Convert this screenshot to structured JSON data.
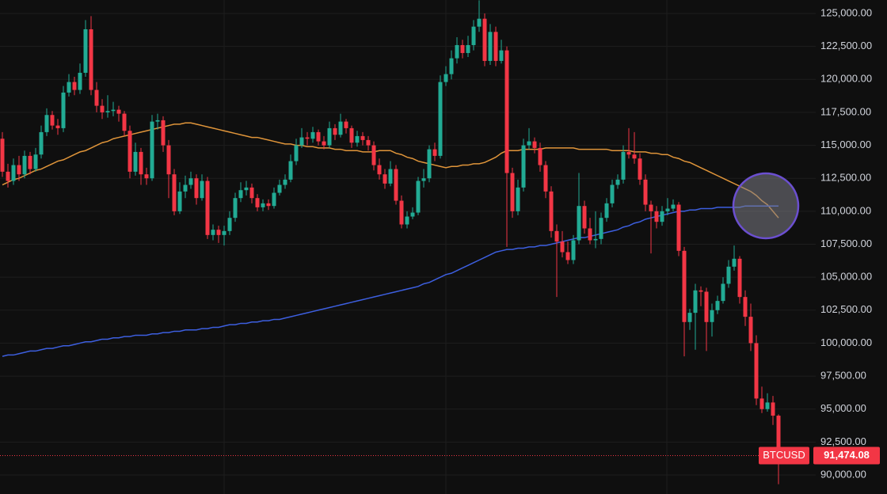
{
  "chart_data": {
    "type": "candlestick",
    "ylim": [
      88560,
      126020
    ],
    "yticks": [
      {
        "value": 90000,
        "label": "90,000.00"
      },
      {
        "value": 92500,
        "label": "92,500.00"
      },
      {
        "value": 95000,
        "label": "95,000.00"
      },
      {
        "value": 97500,
        "label": "97,500.00"
      },
      {
        "value": 100000,
        "label": "100,000.00"
      },
      {
        "value": 102500,
        "label": "102,500.00"
      },
      {
        "value": 105000,
        "label": "105,000.00"
      },
      {
        "value": 107500,
        "label": "107,500.00"
      },
      {
        "value": 110000,
        "label": "110,000.00"
      },
      {
        "value": 112500,
        "label": "112,500.00"
      },
      {
        "value": 115000,
        "label": "115,000.00"
      },
      {
        "value": 117500,
        "label": "117,500.00"
      },
      {
        "value": 120000,
        "label": "120,000.00"
      },
      {
        "value": 122500,
        "label": "122,500.00"
      },
      {
        "value": 125000,
        "label": "125,000.00"
      }
    ],
    "grid": true,
    "up_color": "#22ab94",
    "down_color": "#f23645",
    "symbol": "BTCUSD",
    "last_price": {
      "value": 91474.08,
      "label": "91,474.08"
    },
    "ohlc": [
      [
        115500,
        116000,
        112600,
        113000
      ],
      [
        113000,
        113600,
        111800,
        112300
      ],
      [
        112300,
        114000,
        112000,
        113500
      ],
      [
        113500,
        114200,
        112300,
        112800
      ],
      [
        112800,
        114600,
        112500,
        114200
      ],
      [
        114200,
        114500,
        112800,
        113200
      ],
      [
        113200,
        114800,
        113000,
        114300
      ],
      [
        114300,
        116500,
        114000,
        116000
      ],
      [
        116000,
        117800,
        115700,
        117300
      ],
      [
        117300,
        117600,
        116200,
        116500
      ],
      [
        116500,
        117000,
        115800,
        116300
      ],
      [
        116300,
        119500,
        116000,
        119000
      ],
      [
        119000,
        120400,
        118700,
        119800
      ],
      [
        119800,
        120200,
        118800,
        119200
      ],
      [
        119200,
        121200,
        118900,
        120500
      ],
      [
        120500,
        124500,
        120200,
        123800
      ],
      [
        123800,
        124800,
        118800,
        119200
      ],
      [
        119200,
        119800,
        117500,
        118000
      ],
      [
        118000,
        118500,
        117000,
        117500
      ],
      [
        117500,
        118800,
        117100,
        117600
      ],
      [
        117600,
        118300,
        117200,
        117700
      ],
      [
        117700,
        118000,
        116800,
        117400
      ],
      [
        117400,
        117600,
        115700,
        116100
      ],
      [
        116100,
        116500,
        112500,
        113000
      ],
      [
        113000,
        115200,
        112700,
        114500
      ],
      [
        114500,
        114800,
        112000,
        112800
      ],
      [
        112800,
        113300,
        112000,
        112500
      ],
      [
        112500,
        117300,
        112300,
        116800
      ],
      [
        116800,
        117400,
        116200,
        116900
      ],
      [
        116900,
        117200,
        114500,
        115000
      ],
      [
        115000,
        115400,
        111000,
        112800
      ],
      [
        112800,
        113200,
        109700,
        110000
      ],
      [
        110000,
        112200,
        109800,
        111500
      ],
      [
        111500,
        112700,
        111000,
        112000
      ],
      [
        112000,
        113000,
        111700,
        112500
      ],
      [
        112500,
        112800,
        110500,
        111000
      ],
      [
        111000,
        112800,
        110800,
        112300
      ],
      [
        112300,
        112600,
        107900,
        108200
      ],
      [
        108200,
        109000,
        107800,
        108600
      ],
      [
        108600,
        108900,
        107600,
        108200
      ],
      [
        108200,
        108900,
        107400,
        108500
      ],
      [
        108500,
        110000,
        108200,
        109500
      ],
      [
        109500,
        111400,
        109200,
        111000
      ],
      [
        111000,
        112200,
        110700,
        111600
      ],
      [
        111600,
        112300,
        111200,
        111800
      ],
      [
        111800,
        112100,
        110600,
        111000
      ],
      [
        111000,
        111300,
        110000,
        110300
      ],
      [
        110300,
        110900,
        110000,
        110600
      ],
      [
        110600,
        110900,
        110100,
        110400
      ],
      [
        110400,
        111800,
        110200,
        111400
      ],
      [
        111400,
        112400,
        111200,
        112000
      ],
      [
        112000,
        112800,
        111700,
        112400
      ],
      [
        112400,
        114300,
        112200,
        113800
      ],
      [
        113800,
        115500,
        113500,
        115000
      ],
      [
        115000,
        116300,
        114800,
        115600
      ],
      [
        115600,
        116000,
        115000,
        115500
      ],
      [
        115500,
        116400,
        115200,
        116000
      ],
      [
        116000,
        116200,
        115000,
        115300
      ],
      [
        115300,
        115700,
        114700,
        115000
      ],
      [
        115000,
        116800,
        114800,
        116300
      ],
      [
        116300,
        116600,
        115400,
        115800
      ],
      [
        115800,
        117400,
        115600,
        116800
      ],
      [
        116800,
        117000,
        115900,
        116300
      ],
      [
        116300,
        116500,
        114800,
        115200
      ],
      [
        115200,
        116100,
        114900,
        115700
      ],
      [
        115700,
        116000,
        115000,
        115400
      ],
      [
        115400,
        115700,
        114600,
        115000
      ],
      [
        115000,
        115300,
        113100,
        113500
      ],
      [
        113500,
        114000,
        112400,
        112800
      ],
      [
        112800,
        113200,
        111700,
        112100
      ],
      [
        112100,
        113800,
        111900,
        113200
      ],
      [
        113200,
        113500,
        110500,
        110800
      ],
      [
        110800,
        111200,
        108700,
        109000
      ],
      [
        109000,
        110000,
        108700,
        109600
      ],
      [
        109600,
        110300,
        109400,
        109900
      ],
      [
        109900,
        112600,
        109700,
        112300
      ],
      [
        112300,
        113200,
        111800,
        112500
      ],
      [
        112500,
        115000,
        112200,
        114700
      ],
      [
        114700,
        115200,
        113800,
        114200
      ],
      [
        114200,
        120300,
        114000,
        119800
      ],
      [
        119800,
        121000,
        119500,
        120400
      ],
      [
        120400,
        122200,
        120000,
        121600
      ],
      [
        121600,
        123200,
        121200,
        122600
      ],
      [
        122600,
        123000,
        121600,
        122000
      ],
      [
        122000,
        123300,
        121700,
        122600
      ],
      [
        122600,
        124500,
        122200,
        124000
      ],
      [
        124000,
        126000,
        123600,
        124600
      ],
      [
        124600,
        125000,
        121000,
        121400
      ],
      [
        121400,
        124200,
        121100,
        123600
      ],
      [
        123600,
        124000,
        121000,
        121400
      ],
      [
        121400,
        123000,
        121200,
        122200
      ],
      [
        122200,
        122500,
        107300,
        112900
      ],
      [
        112900,
        113300,
        109500,
        110000
      ],
      [
        110000,
        112400,
        109700,
        111800
      ],
      [
        111800,
        115500,
        111500,
        115000
      ],
      [
        115000,
        116300,
        114700,
        115300
      ],
      [
        115300,
        115600,
        114400,
        114800
      ],
      [
        114800,
        115200,
        113000,
        113500
      ],
      [
        113500,
        113800,
        111000,
        111500
      ],
      [
        111500,
        111900,
        108000,
        108500
      ],
      [
        108500,
        109000,
        103500,
        107700
      ],
      [
        107700,
        108500,
        106500,
        106900
      ],
      [
        106900,
        107700,
        106000,
        106300
      ],
      [
        106300,
        108200,
        106000,
        107800
      ],
      [
        107800,
        112900,
        107500,
        110400
      ],
      [
        110400,
        110800,
        108300,
        108700
      ],
      [
        108700,
        109500,
        107500,
        107800
      ],
      [
        107800,
        110000,
        107200,
        107900
      ],
      [
        107900,
        109900,
        107500,
        109500
      ],
      [
        109500,
        111000,
        109200,
        110600
      ],
      [
        110600,
        112400,
        110300,
        112000
      ],
      [
        112000,
        112800,
        111700,
        112400
      ],
      [
        112400,
        115000,
        112100,
        114500
      ],
      [
        114500,
        116300,
        114000,
        114300
      ],
      [
        114300,
        116000,
        113600,
        114000
      ],
      [
        114000,
        114400,
        112000,
        112400
      ],
      [
        112400,
        112800,
        110000,
        110500
      ],
      [
        110500,
        110800,
        106800,
        110000
      ],
      [
        110000,
        110400,
        108700,
        109200
      ],
      [
        109200,
        110400,
        108900,
        110000
      ],
      [
        110000,
        111000,
        109700,
        110200
      ],
      [
        110200,
        110900,
        110000,
        110500
      ],
      [
        110500,
        110700,
        106600,
        107000
      ],
      [
        107000,
        107300,
        99000,
        101600
      ],
      [
        101600,
        102600,
        101000,
        102300
      ],
      [
        102300,
        104500,
        99500,
        104000
      ],
      [
        104000,
        104300,
        102800,
        103900
      ],
      [
        103900,
        104200,
        99400,
        101600
      ],
      [
        101600,
        103000,
        100500,
        102500
      ],
      [
        102500,
        103600,
        102200,
        103200
      ],
      [
        103200,
        105000,
        103000,
        104500
      ],
      [
        104500,
        106300,
        104200,
        105800
      ],
      [
        105800,
        107400,
        105500,
        106400
      ],
      [
        106400,
        106600,
        103000,
        103500
      ],
      [
        103500,
        104000,
        101300,
        102000
      ],
      [
        102000,
        103000,
        99400,
        100000
      ],
      [
        100000,
        100600,
        95300,
        95800
      ],
      [
        95800,
        96700,
        94700,
        95000
      ],
      [
        95000,
        96200,
        94800,
        95500
      ],
      [
        95500,
        96000,
        93800,
        94500
      ],
      [
        94500,
        94600,
        89300,
        91474.08
      ]
    ],
    "lines": [
      {
        "color": "#e0953a",
        "values": [
          112000,
          112200,
          112400,
          112500,
          112700,
          112900,
          113100,
          113200,
          113400,
          113600,
          113800,
          113900,
          114100,
          114300,
          114500,
          114600,
          114800,
          115000,
          115200,
          115300,
          115500,
          115600,
          115700,
          115800,
          115900,
          116000,
          116100,
          116200,
          116300,
          116400,
          116500,
          116600,
          116600,
          116700,
          116700,
          116600,
          116500,
          116400,
          116300,
          116200,
          116100,
          116000,
          115900,
          115800,
          115700,
          115600,
          115600,
          115500,
          115400,
          115300,
          115200,
          115100,
          115100,
          115000,
          115000,
          114900,
          114900,
          114800,
          114800,
          114800,
          114700,
          114700,
          114600,
          114600,
          114600,
          114500,
          114500,
          114500,
          114600,
          114600,
          114600,
          114400,
          114300,
          114100,
          114000,
          113800,
          113700,
          113600,
          113500,
          113400,
          113300,
          113400,
          113400,
          113500,
          113500,
          113600,
          113600,
          113700,
          113900,
          114100,
          114400,
          114600,
          114600,
          114600,
          114700,
          114700,
          114700,
          114700,
          114800,
          114800,
          114800,
          114800,
          114800,
          114800,
          114700,
          114700,
          114700,
          114700,
          114700,
          114700,
          114600,
          114600,
          114600,
          114600,
          114500,
          114500,
          114500,
          114400,
          114400,
          114300,
          114300,
          114100,
          114000,
          113800,
          113700,
          113500,
          113300,
          113100,
          112900,
          112700,
          112500,
          112300,
          112100,
          111900,
          111700,
          111500,
          111200,
          110800,
          110500,
          110000,
          109500
        ]
      },
      {
        "color": "#3d5fe0",
        "values": [
          99000,
          99100,
          99100,
          99200,
          99300,
          99400,
          99400,
          99500,
          99600,
          99600,
          99700,
          99800,
          99800,
          99900,
          100000,
          100100,
          100100,
          100200,
          100300,
          100300,
          100400,
          100400,
          100500,
          100500,
          100600,
          100600,
          100600,
          100700,
          100700,
          100800,
          100800,
          100900,
          100900,
          101000,
          101000,
          101000,
          101100,
          101100,
          101200,
          101200,
          101300,
          101400,
          101400,
          101500,
          101500,
          101600,
          101600,
          101700,
          101700,
          101800,
          101800,
          101900,
          102000,
          102100,
          102200,
          102300,
          102400,
          102500,
          102600,
          102700,
          102800,
          102900,
          103000,
          103100,
          103200,
          103300,
          103400,
          103500,
          103600,
          103700,
          103800,
          103900,
          104000,
          104100,
          104200,
          104300,
          104500,
          104600,
          104800,
          105000,
          105200,
          105300,
          105500,
          105700,
          105900,
          106100,
          106300,
          106500,
          106700,
          106900,
          107000,
          107100,
          107100,
          107200,
          107200,
          107300,
          107300,
          107400,
          107400,
          107500,
          107600,
          107700,
          107800,
          107900,
          108000,
          108000,
          108100,
          108200,
          108300,
          108400,
          108500,
          108600,
          108800,
          108900,
          109100,
          109200,
          109400,
          109500,
          109600,
          109700,
          109800,
          109900,
          110000,
          110000,
          110100,
          110100,
          110200,
          110200,
          110200,
          110300,
          110300,
          110300,
          110300,
          110300,
          110400,
          110400,
          110400,
          110400,
          110400,
          110400,
          110400
        ]
      }
    ]
  }
}
